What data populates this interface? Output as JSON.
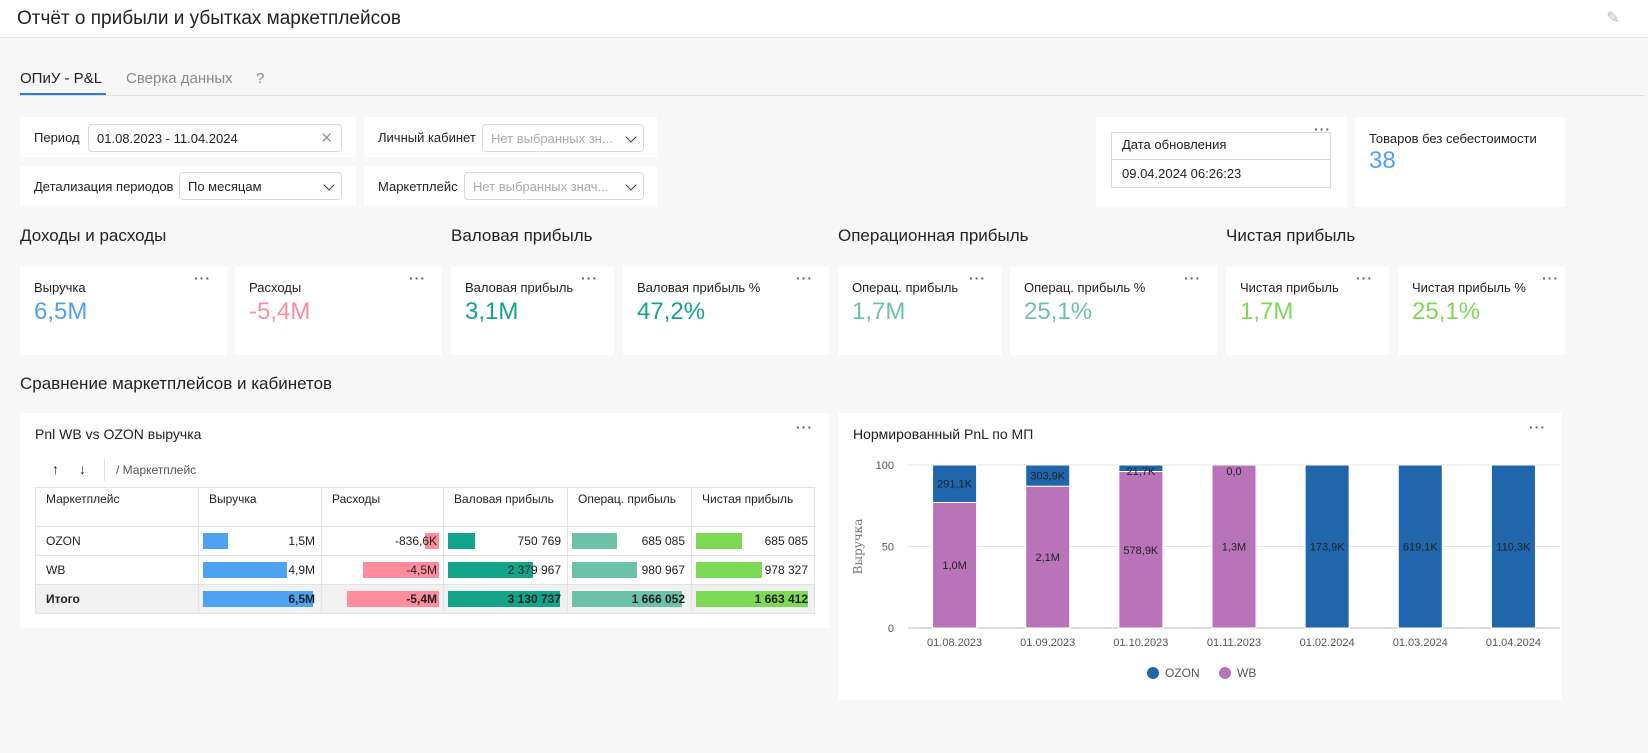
{
  "header": {
    "title": "Отчёт о прибыли и убытках маркетплейсов"
  },
  "tabs": [
    {
      "label": "ОПиУ - P&L",
      "active": true
    },
    {
      "label": "Сверка данных",
      "active": false
    },
    {
      "label": "?",
      "active": false
    }
  ],
  "filters": {
    "period_label": "Период",
    "period_value": "01.08.2023 - 11.04.2024",
    "detail_label": "Детализация периодов",
    "detail_value": "По месяцам",
    "cabinet_label": "Личный кабинет",
    "cabinet_placeholder": "Нет выбранных зн...",
    "marketplace_label": "Маркетплейс",
    "marketplace_placeholder": "Нет выбранных знач..."
  },
  "update": {
    "label": "Дата обновления",
    "value": "09.04.2024 06:26:23"
  },
  "no_cost": {
    "label": "Товаров без себестоимости",
    "value": "38"
  },
  "sections": {
    "income": "Доходы и расходы",
    "gross": "Валовая прибыль",
    "operating": "Операционная прибыль",
    "net": "Чистая прибыль",
    "compare": "Сравнение маркетплейсов и кабинетов"
  },
  "kpis": [
    {
      "label": "Выручка",
      "value": "6,5M",
      "color": "#4da2f1"
    },
    {
      "label": "Расходы",
      "value": "-5,4M",
      "color": "#ff8c9c"
    },
    {
      "label": "Валовая прибыль",
      "value": "3,1M",
      "color": "#14a38b"
    },
    {
      "label": "Валовая прибыль %",
      "value": "47,2%",
      "color": "#14a38b"
    },
    {
      "label": "Операц. прибыль",
      "value": "1,7M",
      "color": "#6cc2a9"
    },
    {
      "label": "Операц. прибыль %",
      "value": "25,1%",
      "color": "#6cc2a9"
    },
    {
      "label": "Чистая прибыль",
      "value": "1,7M",
      "color": "#7ed957"
    },
    {
      "label": "Чистая прибыль %",
      "value": "25,1%",
      "color": "#7ed957"
    }
  ],
  "table": {
    "title": "Pnl WB vs OZON выручка",
    "breadcrumb": "/ Маркетплейс",
    "sort_up": "↑",
    "sort_down": "↓",
    "columns": [
      "Маркетплейс",
      "Выручка",
      "Расходы",
      "Валовая прибыль",
      "Операц. прибыль",
      "Чистая прибыль"
    ],
    "bar_colors": [
      "#4da2f1",
      "#ff8c9c",
      "#14a38b",
      "#6cc2a9",
      "#7ed957"
    ],
    "rows": [
      {
        "name": "OZON",
        "cells": [
          "1,5M",
          "-836,6K",
          "750 769",
          "685 085",
          "685 085"
        ],
        "fractions": [
          0.23,
          0.15,
          0.24,
          0.41,
          0.41
        ]
      },
      {
        "name": "WB",
        "cells": [
          "4,9M",
          "-4,5M",
          "2 379 967",
          "980 967",
          "978 327"
        ],
        "fractions": [
          0.76,
          0.83,
          0.76,
          0.59,
          0.59
        ]
      },
      {
        "name": "Итого",
        "cells": [
          "6,5M",
          "-5,4M",
          "3 130 737",
          "1 666 052",
          "1 663 412"
        ],
        "fractions": [
          1,
          1,
          1,
          1,
          1
        ],
        "total": true
      }
    ]
  },
  "chart_title": "Нормированный PnL по МП",
  "chart_data": {
    "type": "bar",
    "stacked": true,
    "title": "Нормированный PnL по МП",
    "xlabel": "",
    "ylabel": "Выручка",
    "ylim": [
      0,
      100
    ],
    "yticks": [
      "0",
      "50",
      "100"
    ],
    "categories": [
      "01.08.2023",
      "01.09.2023",
      "01.10.2023",
      "01.11.2023",
      "01.02.2024",
      "01.03.2024",
      "01.04.2024"
    ],
    "series": [
      {
        "name": "WB",
        "color": "#b974b9",
        "values": [
          77,
          87,
          96,
          100,
          0,
          0,
          0
        ],
        "labels": [
          "1,0M",
          "2,1M",
          "578,9K",
          "1,3M",
          "",
          "",
          ""
        ]
      },
      {
        "name": "OZON",
        "color": "#2066ad",
        "values": [
          23,
          13,
          4,
          0,
          100,
          100,
          100
        ],
        "labels": [
          "291,1K",
          "303,9K",
          "21,7K",
          "0,0",
          "173,9K",
          "619,1K",
          "110,3K"
        ]
      }
    ],
    "legend": [
      "OZON",
      "WB"
    ]
  }
}
